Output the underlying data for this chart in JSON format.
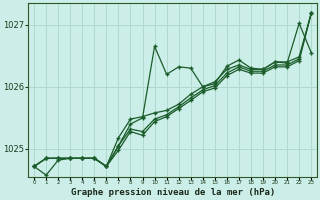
{
  "title": "Graphe pression niveau de la mer (hPa)",
  "background_color": "#cceee8",
  "grid_color": "#b0d8cc",
  "line_color": "#1a5c2a",
  "marker_color": "#1a5c2a",
  "ylim": [
    1024.55,
    1027.35
  ],
  "xlim": [
    -0.5,
    23.5
  ],
  "yticks": [
    1025,
    1026,
    1027
  ],
  "xticks": [
    0,
    1,
    2,
    3,
    4,
    5,
    6,
    7,
    8,
    9,
    10,
    11,
    12,
    13,
    14,
    15,
    16,
    17,
    18,
    19,
    20,
    21,
    22,
    23
  ],
  "series1": [
    1024.72,
    1024.58,
    1024.82,
    1024.85,
    1024.85,
    1024.85,
    1024.72,
    1025.05,
    1025.4,
    1025.5,
    1026.65,
    1026.2,
    1026.32,
    1026.3,
    1026.0,
    1026.05,
    1026.33,
    1026.43,
    1026.3,
    1026.28,
    1026.4,
    1026.38,
    1027.02,
    1026.55
  ],
  "series2": [
    1024.72,
    1024.85,
    1024.85,
    1024.85,
    1024.85,
    1024.85,
    1024.72,
    1025.18,
    1025.48,
    1025.52,
    1025.58,
    1025.62,
    1025.72,
    1025.88,
    1026.0,
    1026.08,
    1026.28,
    1026.35,
    1026.28,
    1026.28,
    1026.4,
    1026.4,
    1026.48,
    1027.18
  ],
  "series3": [
    1024.72,
    1024.85,
    1024.85,
    1024.85,
    1024.85,
    1024.85,
    1024.72,
    1025.05,
    1025.32,
    1025.28,
    1025.48,
    1025.55,
    1025.68,
    1025.82,
    1025.95,
    1026.02,
    1026.22,
    1026.32,
    1026.25,
    1026.25,
    1026.35,
    1026.35,
    1026.45,
    1027.18
  ],
  "series4": [
    1024.72,
    1024.85,
    1024.85,
    1024.85,
    1024.85,
    1024.85,
    1024.72,
    1024.98,
    1025.28,
    1025.22,
    1025.44,
    1025.52,
    1025.65,
    1025.78,
    1025.92,
    1025.98,
    1026.18,
    1026.28,
    1026.22,
    1026.22,
    1026.32,
    1026.32,
    1026.42,
    1027.18
  ]
}
